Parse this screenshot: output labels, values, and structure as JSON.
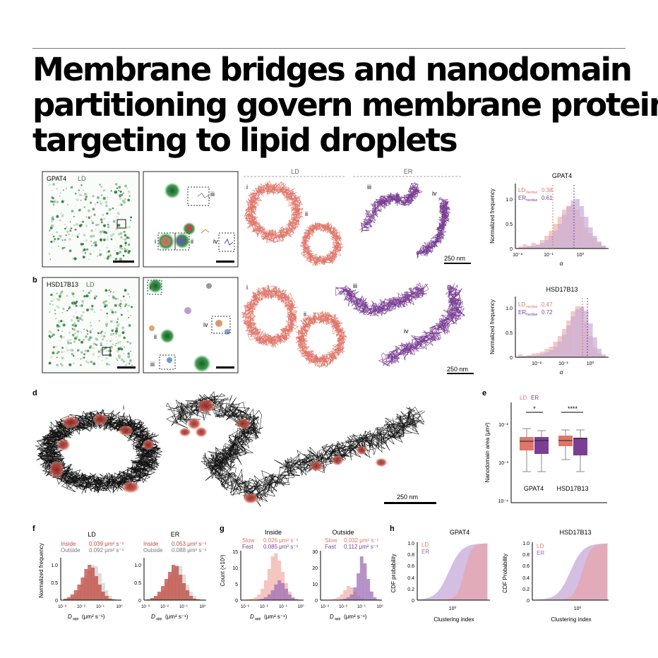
{
  "title_lines": [
    "Membrane bridges and nanodomain",
    "partitioning govern membrane protein",
    "targeting to lipid droplets"
  ],
  "panels": {
    "a": {
      "protein": "GPAT4",
      "stain": "LD",
      "track_groups": [
        "LD",
        "ER"
      ],
      "roman": [
        "i",
        "ii",
        "iii",
        "iv"
      ],
      "scale": "250 nm"
    },
    "b": {
      "letter": "b",
      "protein": "HSD17B13",
      "stain": "LD",
      "roman": [
        "i",
        "ii",
        "iii",
        "iv"
      ],
      "scale": "250 nm"
    },
    "c": {
      "gpat4": {
        "title": "GPAT4",
        "ylabel": "Normalized frequency",
        "xlabel": "α",
        "ld_label": "LD",
        "ld_sub": "median",
        "ld_value": "0.38",
        "er_label": "ER",
        "er_sub": "median",
        "er_value": "0.61",
        "yticks": [
          "0",
          "0.5",
          "1.0"
        ],
        "xticks": [
          "10⁻²",
          "10⁻¹",
          "10⁰"
        ]
      },
      "hsd": {
        "title": "HSD17B13",
        "ylabel": "Normalized frequency",
        "xlabel": "α",
        "ld_label": "LD",
        "ld_sub": "median",
        "ld_value": "0.47",
        "er_label": "ER",
        "er_sub": "median",
        "er_value": "0.72",
        "yticks": [
          "0",
          "0.5",
          "1.0"
        ],
        "xticks": [
          "10⁻²",
          "10⁻¹",
          "10⁰"
        ]
      }
    },
    "d": {
      "letter": "d",
      "roman": "i",
      "scale": "250 nm"
    },
    "e": {
      "letter": "e",
      "legend_ld": "LD",
      "legend_er": "ER",
      "ylabel": "Nanodomain area (μm²)",
      "yticks": [
        "10⁻²",
        "10⁻³",
        "10⁻⁴"
      ],
      "categories": [
        "GPAT4",
        "HSD17B13"
      ],
      "sig": [
        "*",
        "****"
      ]
    },
    "f": {
      "letter": "f",
      "ylabel": "Normalized frequency",
      "yticks": [
        "0",
        "0.5",
        "1.0"
      ],
      "xticks": [
        "10⁻³",
        "10⁻²",
        "10⁻¹",
        "10⁰"
      ],
      "xlabel_main": "D",
      "xlabel_sub": "app",
      "xlabel_units": "(μm² s⁻¹)",
      "ld": {
        "title": "LD",
        "inside_label": "Inside",
        "inside_value": "0.039 μm² s⁻¹",
        "outside_label": "Outside",
        "outside_value": "0.092 μm² s⁻¹"
      },
      "er": {
        "title": "ER",
        "inside_label": "Inside",
        "inside_value": "0.053 μm² s⁻¹",
        "outside_label": "Outside",
        "outside_value": "0.088 μm² s⁻¹"
      }
    },
    "g": {
      "letter": "g",
      "ylabel": "Count (×10³)",
      "xticks": [
        "10⁻³",
        "10⁻²",
        "10⁻¹",
        "10⁰"
      ],
      "xlabel_main": "D",
      "xlabel_sub": "app",
      "xlabel_units": "(μm² s⁻¹)",
      "inside": {
        "title": "Inside",
        "yticks": [
          "0",
          "5",
          "10",
          "15"
        ],
        "slow_label": "Slow",
        "slow_value": "0.026 μm² s⁻¹",
        "fast_label": "Fast",
        "fast_value": "0.085 μm² s⁻¹"
      },
      "outside": {
        "title": "Outside",
        "yticks": [
          "0",
          "10",
          "20",
          "30"
        ],
        "slow_label": "Slow",
        "slow_value": "0.032 μm² s⁻¹",
        "fast_label": "Fast",
        "fast_value": "0.112 μm² s⁻¹"
      }
    },
    "h": {
      "letter": "h",
      "xlabel": "Clustering index",
      "xtick": "10⁰",
      "yticks": [
        "0",
        "0.2",
        "0.4",
        "0.6",
        "0.8",
        "1.0"
      ],
      "gpat4": {
        "title": "GPAT4",
        "ylabel": "CDF probability",
        "ld": "LD",
        "er": "ER"
      },
      "hsd": {
        "title": "HSD17B13",
        "ylabel": "CDF Probability",
        "ld": "LD",
        "er": "ER"
      }
    }
  },
  "colors": {
    "ld": "#e0766a",
    "er": "#7a3f93",
    "ld_light": "#f2b7b0",
    "er_light": "#c9add6",
    "green": "#2e7d3a",
    "droplet": "#b5453a"
  }
}
